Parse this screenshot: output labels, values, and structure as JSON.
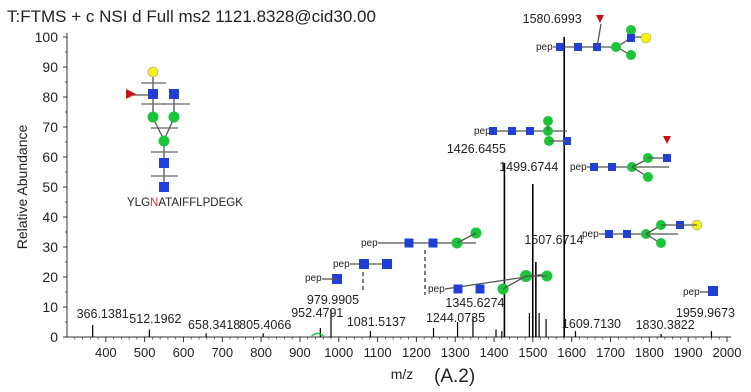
{
  "chart_data": {
    "type": "bar",
    "title": "T:FTMS + c NSI d Full ms2 1121.8328@cid30.00",
    "xlabel": "m/z",
    "ylabel": "Relative Abundance",
    "panel_label": "(A.2)",
    "xlim": [
      300,
      2000
    ],
    "ylim": [
      0,
      100
    ],
    "x_ticks": [
      400,
      500,
      600,
      700,
      800,
      900,
      1000,
      1100,
      1200,
      1300,
      1400,
      1500,
      1600,
      1700,
      1800,
      1900,
      2000
    ],
    "y_ticks": [
      0,
      10,
      20,
      30,
      40,
      50,
      60,
      70,
      80,
      90,
      100
    ],
    "peaks": [
      {
        "x": 366.1381,
        "y": 4
      },
      {
        "x": 512.1962,
        "y": 2.5
      },
      {
        "x": 658.3418,
        "y": 1.2
      },
      {
        "x": 805.4066,
        "y": 1.2
      },
      {
        "x": 952.4791,
        "y": 3
      },
      {
        "x": 979.9905,
        "y": 9
      },
      {
        "x": 1081.5137,
        "y": 2
      },
      {
        "x": 1244.0735,
        "y": 3
      },
      {
        "x": 1306.0,
        "y": 5
      },
      {
        "x": 1345.6274,
        "y": 7
      },
      {
        "x": 1405.0,
        "y": 2.5
      },
      {
        "x": 1420.0,
        "y": 2
      },
      {
        "x": 1426.6455,
        "y": 58
      },
      {
        "x": 1491.0,
        "y": 8
      },
      {
        "x": 1499.6744,
        "y": 51
      },
      {
        "x": 1507.6714,
        "y": 25
      },
      {
        "x": 1516.0,
        "y": 8
      },
      {
        "x": 1534.0,
        "y": 6
      },
      {
        "x": 1580.6993,
        "y": 100
      },
      {
        "x": 1609.713,
        "y": 2
      },
      {
        "x": 1830.3822,
        "y": 1
      },
      {
        "x": 1959.9673,
        "y": 2
      }
    ],
    "peak_labels": [
      {
        "x": 366.1381,
        "text": "366.1381"
      },
      {
        "x": 512.1962,
        "text": "512.1962"
      },
      {
        "x": 658.3418,
        "text": "658.3418"
      },
      {
        "x": 805.4066,
        "text": "805.4066"
      },
      {
        "x": 952.4791,
        "text": "952.4791"
      },
      {
        "x": 979.9905,
        "text": "979.9905"
      },
      {
        "x": 1081.5137,
        "text": "1081.5137"
      },
      {
        "x": 1244.0735,
        "text": "1244.0735"
      },
      {
        "x": 1345.6274,
        "text": "1345.6274"
      },
      {
        "x": 1426.6455,
        "text": "1426.6455"
      },
      {
        "x": 1499.6744,
        "text": "1499.6744"
      },
      {
        "x": 1507.6714,
        "text": "1507.6714"
      },
      {
        "x": 1580.6993,
        "text": "1580.6993"
      },
      {
        "x": 1609.713,
        "text": "1609.7130"
      },
      {
        "x": 1830.3822,
        "text": "1830.3822"
      },
      {
        "x": 1959.9673,
        "text": "1959.9673"
      }
    ],
    "glycan_annotations": {
      "pep_label": "pep",
      "peptide_sequence": "YLGNATAIFFLPDEGK",
      "highlighted_residue": "N"
    },
    "colors": {
      "glcnac": "#1f3fd6",
      "mannose": "#1cc43a",
      "galactose": "#f5f50a",
      "fucose": "#cc1111",
      "highlight_residue": "#e03030",
      "spectrum": "#000000"
    }
  }
}
